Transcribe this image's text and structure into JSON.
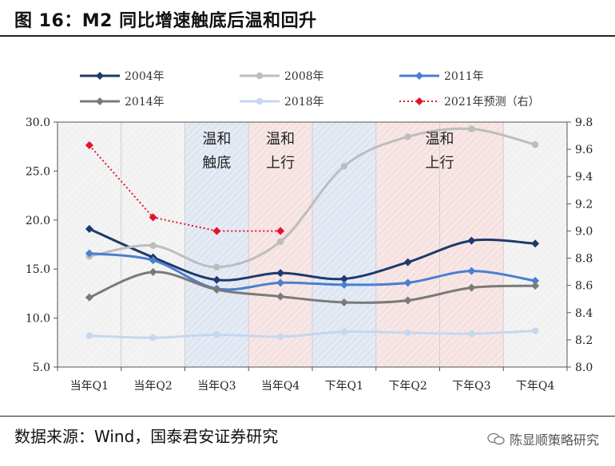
{
  "header": {
    "title": "图 16：M2 同比增速触底后温和回升"
  },
  "footer": {
    "source": "数据来源：Wind，国泰君安证券研究",
    "watermark": "陈显顺策略研究"
  },
  "chart_data": {
    "type": "line",
    "categories": [
      "当年Q1",
      "当年Q2",
      "当年Q3",
      "当年Q4",
      "下年Q1",
      "下年Q2",
      "下年Q3",
      "下年Q4"
    ],
    "y_left": {
      "min": 5.0,
      "max": 30.0,
      "ticks": [
        "5.0",
        "10.0",
        "15.0",
        "20.0",
        "25.0",
        "30.0"
      ]
    },
    "y_right": {
      "min": 8.0,
      "max": 9.8,
      "ticks": [
        "8.0",
        "8.2",
        "8.4",
        "8.6",
        "8.8",
        "9.0",
        "9.2",
        "9.4",
        "9.6",
        "9.8"
      ]
    },
    "series": [
      {
        "name": "2004年",
        "axis": "left",
        "color": "#1f3a6b",
        "marker": "diamond",
        "values": [
          19.1,
          16.2,
          13.9,
          14.6,
          14.0,
          15.7,
          17.9,
          17.6
        ]
      },
      {
        "name": "2008年",
        "axis": "left",
        "color": "#bdbdbd",
        "marker": "circle",
        "values": [
          16.3,
          17.4,
          15.2,
          17.8,
          25.5,
          28.5,
          29.3,
          27.7
        ]
      },
      {
        "name": "2011年",
        "axis": "left",
        "color": "#4a7fd0",
        "marker": "diamond",
        "values": [
          16.6,
          15.9,
          13.0,
          13.6,
          13.4,
          13.6,
          14.8,
          13.8
        ]
      },
      {
        "name": "2014年",
        "axis": "left",
        "color": "#7a7a7a",
        "marker": "diamond",
        "values": [
          12.1,
          14.7,
          12.9,
          12.2,
          11.6,
          11.8,
          13.1,
          13.3
        ]
      },
      {
        "name": "2018年",
        "axis": "left",
        "color": "#c5d7ef",
        "marker": "circle",
        "values": [
          8.2,
          8.0,
          8.3,
          8.1,
          8.6,
          8.5,
          8.4,
          8.7
        ]
      },
      {
        "name": "2021年预测（右）",
        "axis": "right",
        "color": "#e8102a",
        "marker": "diamond",
        "dotted": true,
        "values": [
          9.63,
          9.1,
          9.0,
          9.0,
          null,
          null,
          null,
          null
        ]
      }
    ],
    "regions": [
      {
        "from": 2,
        "to": 3,
        "color": "#dfe6f2",
        "label": [
          "温和",
          "触底"
        ]
      },
      {
        "from": 3,
        "to": 4,
        "color": "#f6e1e1",
        "label": [
          "温和",
          "上行"
        ]
      },
      {
        "from": 4,
        "to": 5,
        "color": "#dfe6f2",
        "label": []
      },
      {
        "from": 5,
        "to": 7,
        "color": "#f6e1e1",
        "label": [
          "温和",
          "上行"
        ]
      }
    ]
  }
}
